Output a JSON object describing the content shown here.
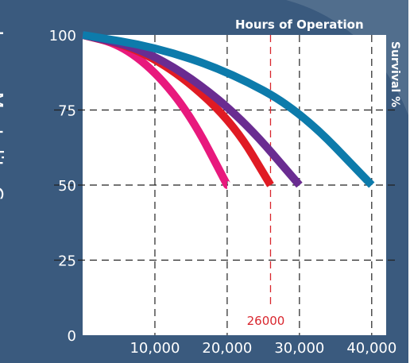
{
  "chart_data": {
    "type": "line",
    "title": "Lamp Mortality Curve",
    "xlabel": "Hours of Operation",
    "ylabel": "Survival %",
    "xlim": [
      0,
      42000
    ],
    "ylim": [
      0,
      100
    ],
    "x_ticks": [
      10000,
      20000,
      30000,
      40000
    ],
    "x_tick_labels": [
      "10,000",
      "20,000",
      "30,000",
      "40,000"
    ],
    "y_ticks": [
      0,
      25,
      50,
      75,
      100
    ],
    "y_tick_labels": [
      "0",
      "25",
      "50",
      "75",
      "100"
    ],
    "grid": "dashed",
    "series": [
      {
        "color": "#e8197d",
        "x": [
          0,
          5000,
          10000,
          15000,
          20000
        ],
        "y": [
          100,
          97,
          88,
          73,
          50
        ]
      },
      {
        "color": "#e01b24",
        "x": [
          0,
          7000,
          14000,
          21000,
          26000
        ],
        "y": [
          100,
          96,
          86,
          70,
          50
        ]
      },
      {
        "color": "#6a2c91",
        "x": [
          0,
          7500,
          15000,
          22500,
          30000
        ],
        "y": [
          100,
          96,
          86,
          71,
          50
        ]
      },
      {
        "color": "#0d7bab",
        "x": [
          0,
          10000,
          20000,
          30000,
          40000
        ],
        "y": [
          100,
          96,
          88,
          75,
          50
        ]
      }
    ],
    "reference_line": {
      "x": 26000,
      "label": "26000",
      "color": "#d9262e"
    }
  },
  "colors": {
    "panel": "#3a5a7e",
    "plot_bg": "#ffffff",
    "grid": "#222222"
  }
}
